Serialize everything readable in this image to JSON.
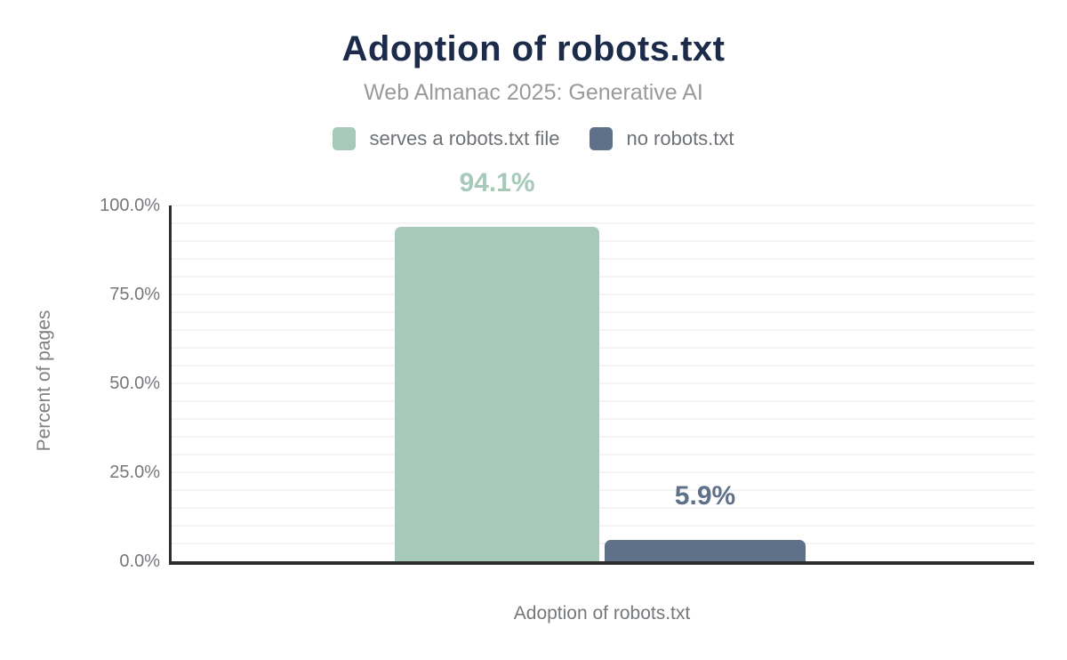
{
  "header": {
    "title": "Adoption of robots.txt",
    "subtitle": "Web Almanac 2025: Generative AI"
  },
  "legend": {
    "items": [
      {
        "label": "serves a robots.txt file",
        "color": "#a6c9b9"
      },
      {
        "label": "no robots.txt",
        "color": "#5f7189"
      }
    ]
  },
  "chart_data": {
    "type": "bar",
    "title": "Adoption of robots.txt",
    "subtitle": "Web Almanac 2025: Generative AI",
    "categories": [
      "Adoption of robots.txt"
    ],
    "series": [
      {
        "name": "serves a robots.txt file",
        "values": [
          94.1
        ],
        "data_label": "94.1%",
        "color": "#a6c9b9"
      },
      {
        "name": "no robots.txt",
        "values": [
          5.9
        ],
        "data_label": "5.9%",
        "color": "#5f7189"
      }
    ],
    "xlabel": "Adoption of robots.txt",
    "ylabel": "Percent of pages",
    "ylim": [
      0,
      100
    ],
    "yticks": [
      "0.0%",
      "25.0%",
      "50.0%",
      "75.0%",
      "100.0%"
    ],
    "minor_grid_step_percent": 5,
    "grid": true,
    "legend_position": "top"
  },
  "colors": {
    "title_text": "#1c2b4a",
    "subtitle_text": "#9a9a9a",
    "axis_text": "#75787b",
    "axis_line": "#2e2e2e",
    "gridline": "#f4f4f4",
    "background": "#ffffff"
  }
}
